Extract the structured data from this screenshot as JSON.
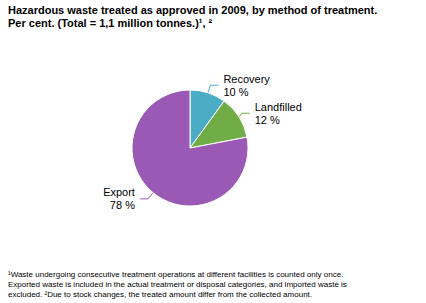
{
  "chart_data": {
    "type": "pie",
    "title": "Hazardous waste treated as approved in 2009, by method of treatment.",
    "subtitle": "Per cent. (Total = 1,1 million tonnes.)¹, ²",
    "categories": [
      "Recovery",
      "Landfilled",
      "Export"
    ],
    "values": [
      10,
      12,
      78
    ],
    "value_labels": [
      "10 %",
      "12 %",
      "78 %"
    ],
    "colors": [
      "#4BACC6",
      "#70AD47",
      "#9B59B6"
    ],
    "data_labels": true,
    "annotations": [
      "¹Waste undergoing consecutive treatment operations at different facilities is counted only once.",
      "Exported waste is included in the actual treatment or disposal categories, and imported waste is",
      "excluded. ²Due to stock changes, the treated amount differ from the collected amount."
    ]
  }
}
